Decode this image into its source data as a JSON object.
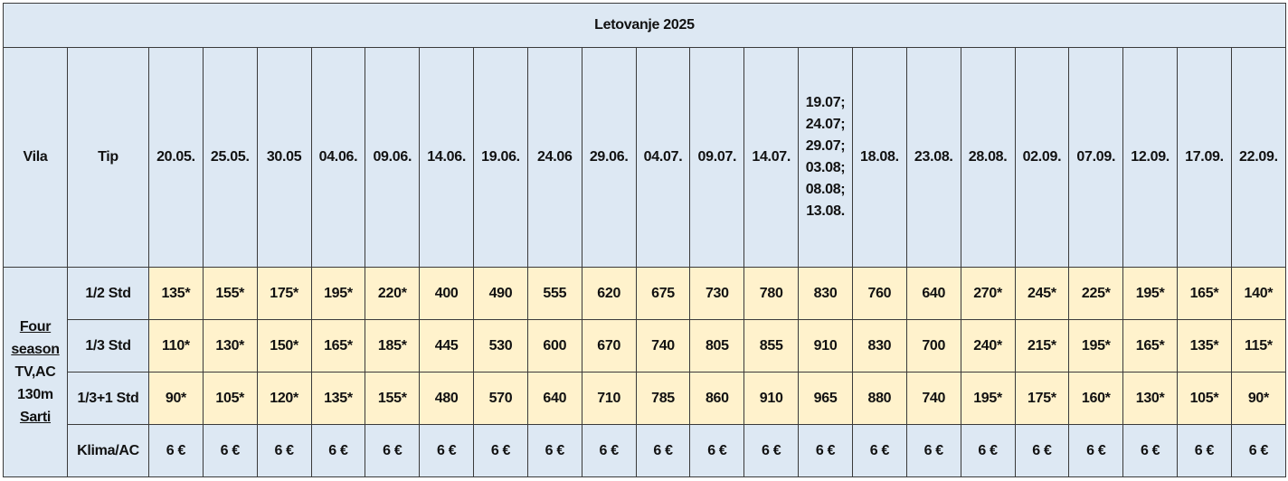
{
  "table": {
    "title": "Letovanje 2025",
    "headers": [
      "Vila",
      "Tip",
      "20.05.",
      "25.05.",
      "30.05",
      "04.06.",
      "09.06.",
      "14.06.",
      "19.06.",
      "24.06",
      "29.06.",
      "04.07.",
      "09.07.",
      "14.07.",
      "19.07; 24.07; 29.07; 03.08; 08.08; 13.08.",
      "18.08.",
      "23.08.",
      "28.08.",
      "02.09.",
      "07.09.",
      "12.09.",
      "17.09.",
      "22.09."
    ],
    "vila": [
      "Four season",
      "TV,AC",
      "130m",
      "Sarti"
    ],
    "rows": [
      [
        "1/2 Std",
        "135*",
        "155*",
        "175*",
        "195*",
        "220*",
        "400",
        "490",
        "555",
        "620",
        "675",
        "730",
        "780",
        "830",
        "760",
        "640",
        "270*",
        "245*",
        "225*",
        "195*",
        "165*",
        "140*"
      ],
      [
        "1/3 Std",
        "110*",
        "130*",
        "150*",
        "165*",
        "185*",
        "445",
        "530",
        "600",
        "670",
        "740",
        "805",
        "855",
        "910",
        "830",
        "700",
        "240*",
        "215*",
        "195*",
        "165*",
        "135*",
        "115*"
      ],
      [
        "1/3+1 Std",
        "90*",
        "105*",
        "120*",
        "135*",
        "155*",
        "480",
        "570",
        "640",
        "710",
        "785",
        "860",
        "910",
        "965",
        "880",
        "740",
        "195*",
        "175*",
        "160*",
        "130*",
        "105*",
        "90*"
      ],
      [
        "Klima/AC",
        "6 €",
        "6 €",
        "6 €",
        "6 €",
        "6 €",
        "6 €",
        "6 €",
        "6 €",
        "6 €",
        "6 €",
        "6 €",
        "6 €",
        "6 €",
        "6 €",
        "6 €",
        "6 €",
        "6 €",
        "6 €",
        "6 €",
        "6 €",
        "6 €"
      ]
    ]
  }
}
